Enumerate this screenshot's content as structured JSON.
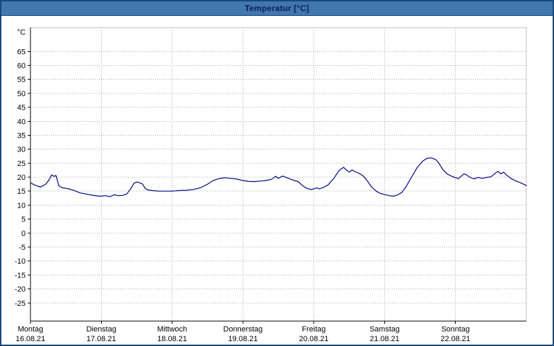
{
  "window": {
    "title": "Temperatur [°C]"
  },
  "colors": {
    "frame_border": "#16477c",
    "titlebar_bg": "#4077ad",
    "titlebar_text": "#0b1f5e",
    "plot_bg": "#ffffff",
    "grid": "#a8a8a8",
    "axis": "#000000",
    "series_line": "#000080"
  },
  "chart_data": {
    "type": "line",
    "title": "Temperatur [°C]",
    "y_unit_label": "°C",
    "y_ticks": [
      65,
      60,
      55,
      50,
      45,
      40,
      35,
      30,
      25,
      20,
      15,
      10,
      5,
      0,
      -5,
      -10,
      -15,
      -20,
      -25
    ],
    "ylim": [
      -31.5,
      73.5
    ],
    "xlim_days": [
      0,
      7
    ],
    "grid": "dotted",
    "legend": "none",
    "x_days": [
      {
        "weekday": "Montag",
        "date": "16.08.21"
      },
      {
        "weekday": "Dienstag",
        "date": "17.08.21"
      },
      {
        "weekday": "Mittwoch",
        "date": "18.08.21"
      },
      {
        "weekday": "Donnerstag",
        "date": "19.08.21"
      },
      {
        "weekday": "Freitag",
        "date": "20.08.21"
      },
      {
        "weekday": "Samstag",
        "date": "21.08.21"
      },
      {
        "weekday": "Sonntag",
        "date": "22.08.21"
      }
    ],
    "series": [
      {
        "name": "Temperatur",
        "color": "#000080",
        "x": [
          0,
          0.05,
          0.1,
          0.14,
          0.18,
          0.22,
          0.26,
          0.3,
          0.33,
          0.36,
          0.4,
          0.44,
          0.5,
          0.56,
          0.62,
          0.7,
          0.78,
          0.86,
          0.94,
          1,
          1.06,
          1.12,
          1.18,
          1.24,
          1.3,
          1.36,
          1.42,
          1.46,
          1.5,
          1.54,
          1.58,
          1.62,
          1.66,
          1.72,
          1.8,
          1.9,
          2,
          2.1,
          2.2,
          2.3,
          2.4,
          2.5,
          2.58,
          2.66,
          2.74,
          2.82,
          2.9,
          3,
          3.08,
          3.16,
          3.24,
          3.32,
          3.4,
          3.46,
          3.5,
          3.56,
          3.62,
          3.7,
          3.78,
          3.84,
          3.9,
          3.96,
          4,
          4.04,
          4.08,
          4.14,
          4.2,
          4.28,
          4.36,
          4.42,
          4.46,
          4.5,
          4.54,
          4.58,
          4.64,
          4.7,
          4.76,
          4.82,
          4.88,
          4.94,
          5,
          5.06,
          5.12,
          5.18,
          5.24,
          5.3,
          5.38,
          5.46,
          5.54,
          5.6,
          5.66,
          5.72,
          5.76,
          5.82,
          5.88,
          5.94,
          6,
          6.04,
          6.08,
          6.12,
          6.16,
          6.2,
          6.26,
          6.32,
          6.38,
          6.44,
          6.5,
          6.56,
          6.6,
          6.64,
          6.68,
          6.72,
          6.78,
          6.84,
          6.9,
          6.96,
          7
        ],
        "y": [
          18,
          17.3,
          16.8,
          16.5,
          17,
          17.6,
          19,
          20.8,
          20.3,
          20.6,
          17,
          16.3,
          16,
          15.7,
          15.2,
          14.4,
          14,
          13.6,
          13.3,
          13.2,
          13.4,
          13,
          13.7,
          13.4,
          13.5,
          14,
          16,
          17.8,
          18.3,
          18,
          17.6,
          16,
          15.4,
          15.2,
          15,
          15,
          15,
          15.2,
          15.3,
          15.6,
          16.2,
          17.5,
          18.8,
          19.5,
          19.8,
          19.6,
          19.4,
          18.8,
          18.5,
          18.4,
          18.6,
          18.8,
          19.2,
          20.3,
          19.6,
          20.4,
          19.8,
          19,
          18.4,
          17,
          16,
          15.6,
          15.8,
          16.2,
          15.8,
          16.4,
          17.2,
          19.5,
          22.5,
          23.5,
          22.6,
          21.8,
          22.6,
          22,
          21.4,
          20.4,
          18.5,
          16.4,
          15,
          14.2,
          13.8,
          13.4,
          13.2,
          13.6,
          14.5,
          16.5,
          20,
          23.5,
          25.8,
          26.8,
          26.9,
          26.3,
          25.2,
          22.8,
          21.2,
          20.4,
          19.8,
          19.5,
          20.3,
          21.2,
          20.8,
          20,
          19.4,
          19.9,
          19.6,
          19.9,
          20.1,
          21.4,
          22.1,
          21.2,
          21.8,
          20.8,
          19.6,
          18.8,
          18.2,
          17.5,
          17
        ]
      }
    ]
  }
}
